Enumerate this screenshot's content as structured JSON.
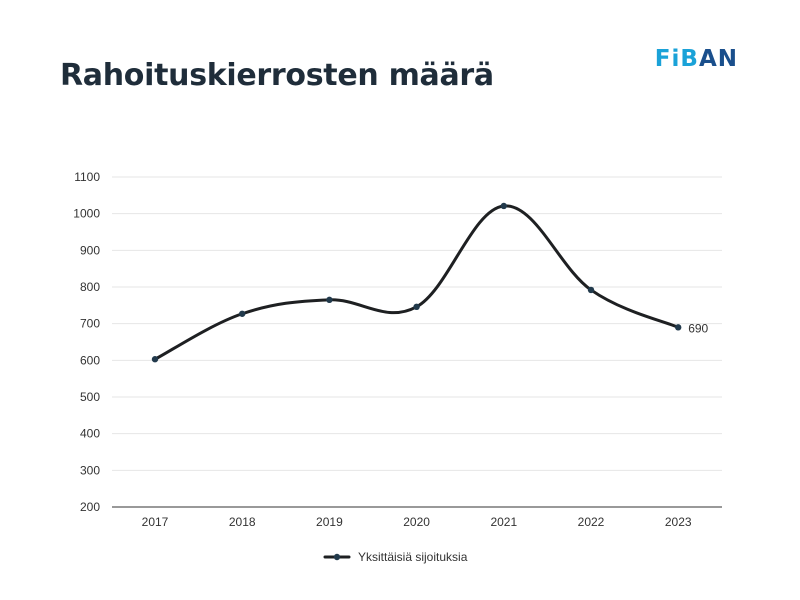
{
  "title": "Rahoituskierrosten määrä",
  "logo": {
    "text_a": "FiB",
    "text_b": "AN",
    "color_a": "#1aa2d8",
    "color_b": "#1a4f8c"
  },
  "colors": {
    "line": "#1e2022",
    "point": "#223a4c",
    "grid": "#e6e6e6",
    "axis": "#333333"
  },
  "chart_data": {
    "type": "line",
    "title": "",
    "xlabel": "",
    "ylabel": "",
    "categories": [
      "2017",
      "2018",
      "2019",
      "2020",
      "2021",
      "2022",
      "2023"
    ],
    "series": [
      {
        "name": "Yksittäisiä sijoituksia",
        "values": [
          603,
          727,
          765,
          746,
          1021,
          792,
          690
        ]
      }
    ],
    "ylim": [
      200,
      1100
    ],
    "yticks": [
      200,
      300,
      400,
      500,
      600,
      700,
      800,
      900,
      1000,
      1100
    ],
    "data_labels": [
      {
        "category": "2023",
        "text": "690"
      }
    ],
    "smooth": true,
    "grid": true,
    "legend": "bottom-center"
  }
}
